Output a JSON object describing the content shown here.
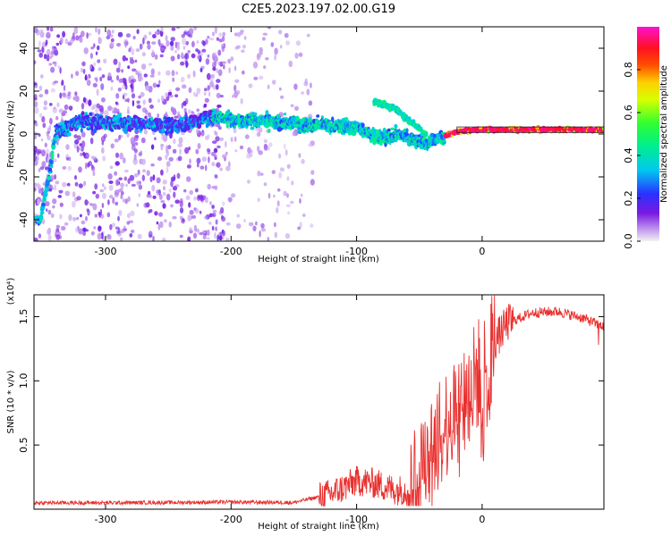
{
  "title": "C2E5.2023.197.02.00.G19",
  "chart_data": [
    {
      "type": "heatmap",
      "name": "spectrogram",
      "xlabel": "Height of straight line (km)",
      "ylabel": "Frequency (Hz)",
      "xlim": [
        -357,
        97
      ],
      "ylim": [
        -50,
        50
      ],
      "xticks": [
        -300,
        -200,
        -100,
        0
      ],
      "yticks": [
        -40,
        -20,
        0,
        20,
        40
      ],
      "colorbar": {
        "label": "Normalized spectral amplitude",
        "range": [
          0,
          1
        ],
        "ticks": [
          0.0,
          0.2,
          0.4,
          0.6,
          0.8
        ],
        "colormap": "rainbow (purple-blue-cyan-green-yellow-red-magenta)"
      },
      "ridge_points": [
        {
          "x": -352,
          "y": -40
        },
        {
          "x": -345,
          "y": -20
        },
        {
          "x": -340,
          "y": 0
        },
        {
          "x": -320,
          "y": 6
        },
        {
          "x": -280,
          "y": 5
        },
        {
          "x": -240,
          "y": 4
        },
        {
          "x": -215,
          "y": 8
        },
        {
          "x": -180,
          "y": 6
        },
        {
          "x": -150,
          "y": 5
        },
        {
          "x": -120,
          "y": 4
        },
        {
          "x": -100,
          "y": 3
        },
        {
          "x": -80,
          "y": -2
        },
        {
          "x": -65,
          "y": 0
        },
        {
          "x": -45,
          "y": -5
        },
        {
          "x": -35,
          "y": -2
        },
        {
          "x": -20,
          "y": 1
        },
        {
          "x": 0,
          "y": 2
        },
        {
          "x": 30,
          "y": 2
        },
        {
          "x": 60,
          "y": 2
        },
        {
          "x": 95,
          "y": 2
        }
      ],
      "secondary_ridge_points": [
        {
          "x": -85,
          "y": 15
        },
        {
          "x": -70,
          "y": 12
        },
        {
          "x": -55,
          "y": 5
        },
        {
          "x": -45,
          "y": 0
        }
      ]
    },
    {
      "type": "line",
      "name": "snr",
      "xlabel": "Height of straight line (km)",
      "ylabel": "SNR (10 * v/v)",
      "y_multiplier": "(x10⁴)",
      "xlim": [
        -357,
        97
      ],
      "ylim": [
        0,
        16700
      ],
      "xticks": [
        -300,
        -200,
        -100,
        0
      ],
      "yticks": [
        5000,
        10000,
        15000
      ],
      "ytick_labels": [
        "0.5",
        "1.0",
        "1.5"
      ],
      "color": "#e8312f",
      "envelope": [
        {
          "x": -357,
          "y": 500
        },
        {
          "x": -300,
          "y": 500
        },
        {
          "x": -250,
          "y": 520
        },
        {
          "x": -200,
          "y": 550
        },
        {
          "x": -150,
          "y": 520
        },
        {
          "x": -120,
          "y": 1200
        },
        {
          "x": -100,
          "y": 2200
        },
        {
          "x": -85,
          "y": 2000
        },
        {
          "x": -70,
          "y": 1500
        },
        {
          "x": -60,
          "y": 1500
        },
        {
          "x": -50,
          "y": 2500
        },
        {
          "x": -40,
          "y": 4000
        },
        {
          "x": -30,
          "y": 6500
        },
        {
          "x": -20,
          "y": 8000
        },
        {
          "x": -10,
          "y": 9500
        },
        {
          "x": 0,
          "y": 11000
        },
        {
          "x": 10,
          "y": 13000
        },
        {
          "x": 20,
          "y": 14500
        },
        {
          "x": 40,
          "y": 15300
        },
        {
          "x": 60,
          "y": 15400
        },
        {
          "x": 80,
          "y": 14900
        },
        {
          "x": 97,
          "y": 14200
        }
      ]
    }
  ]
}
